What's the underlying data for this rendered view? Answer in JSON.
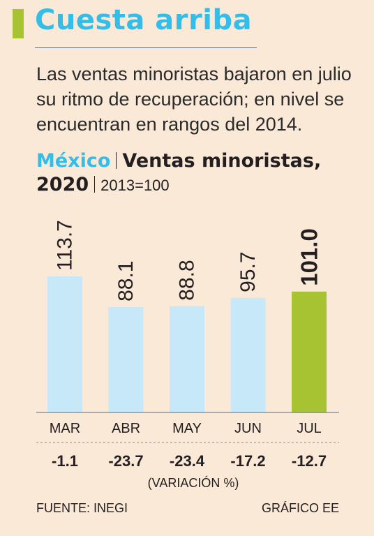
{
  "header": {
    "title": "Cuesta arriba",
    "subtitle": "Las ventas minoristas bajaron en julio su ritmo de recuperación; en nivel se encuentran en rangos del 2014."
  },
  "chart_heading": {
    "country": "México",
    "indicator": "Ventas minoristas,",
    "year": "2020",
    "base": "2013=100"
  },
  "chart_data": {
    "type": "bar",
    "categories": [
      "MAR",
      "ABR",
      "MAY",
      "JUN",
      "JUL"
    ],
    "values": [
      113.7,
      88.1,
      88.8,
      95.7,
      101.0
    ],
    "value_labels": [
      "113.7",
      "88.1",
      "88.8",
      "95.7",
      "101.0"
    ],
    "variations": [
      "-1.1",
      "-23.7",
      "-23.4",
      "-17.2",
      "-12.7"
    ],
    "variation_caption": "(VARIACIÓN %)",
    "highlight_index": 4,
    "colors": {
      "bar": "#c6e8f8",
      "highlight": "#a8c331"
    },
    "ylim": [
      0,
      113.7
    ]
  },
  "footer": {
    "source": "FUENTE: INEGI",
    "credit": "GRÁFICO EE"
  }
}
